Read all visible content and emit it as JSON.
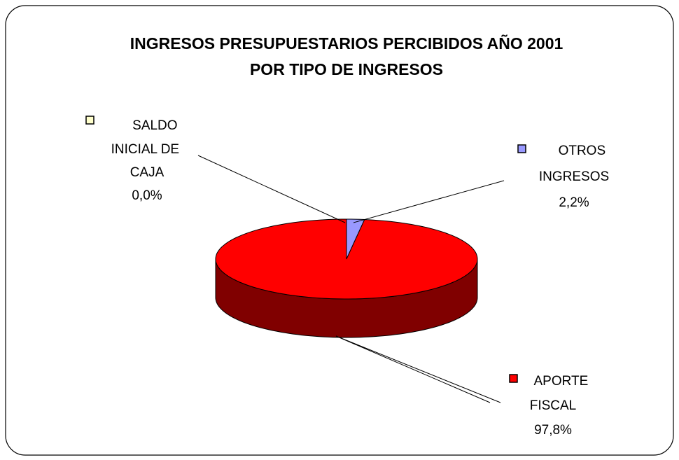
{
  "chart_data": {
    "type": "pie",
    "title": [
      "INGRESOS PRESUPUESTARIOS PERCIBIDOS AÑO 2001",
      "POR TIPO DE INGRESOS"
    ],
    "categories": [
      "SALDO INICIAL DE CAJA",
      "OTROS INGRESOS",
      "APORTE FISCAL"
    ],
    "values": [
      0.0,
      2.2,
      97.8
    ],
    "value_labels": [
      "0,0%",
      "2,2%",
      "97,8%"
    ],
    "colors": [
      "#ffffcc",
      "#9999ff",
      "#ff0000"
    ]
  }
}
